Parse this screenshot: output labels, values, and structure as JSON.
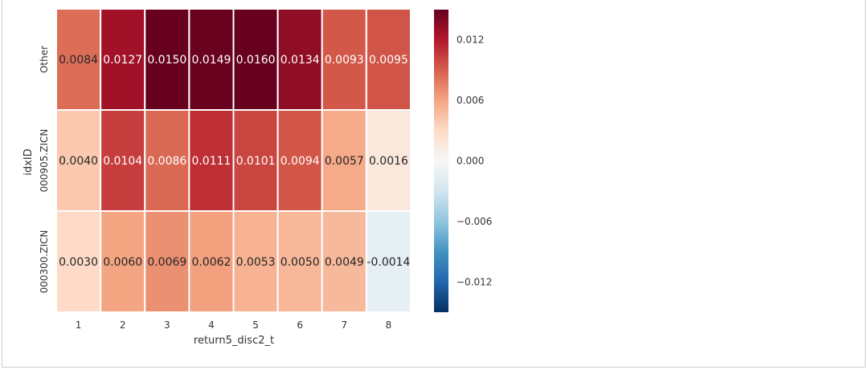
{
  "chart_data": {
    "type": "heatmap",
    "xlabel": "return5_disc2_t",
    "ylabel": "idxID",
    "x_categories": [
      "1",
      "2",
      "3",
      "4",
      "5",
      "6",
      "7",
      "8"
    ],
    "y_categories": [
      "Other",
      "000905.ZICN",
      "000300.ZICN"
    ],
    "values": [
      [
        0.0084,
        0.0127,
        0.015,
        0.0149,
        0.016,
        0.0134,
        0.0093,
        0.0095
      ],
      [
        0.004,
        0.0104,
        0.0086,
        0.0111,
        0.0101,
        0.0094,
        0.0057,
        0.0016
      ],
      [
        0.003,
        0.006,
        0.0069,
        0.0062,
        0.0053,
        0.005,
        0.0049,
        -0.0014
      ]
    ],
    "value_labels": [
      [
        "0.0084",
        "0.0127",
        "0.0150",
        "0.0149",
        "0.0160",
        "0.0134",
        "0.0093",
        "0.0095"
      ],
      [
        "0.0040",
        "0.0104",
        "0.0086",
        "0.0111",
        "0.0101",
        "0.0094",
        "0.0057",
        "0.0016"
      ],
      [
        "0.0030",
        "0.0060",
        "0.0069",
        "0.0062",
        "0.0053",
        "0.0050",
        "0.0049",
        "-0.0014"
      ]
    ],
    "colorbar": {
      "range": [
        -0.015,
        0.015
      ],
      "ticks": [
        0.012,
        0.006,
        0.0,
        -0.006,
        -0.012
      ],
      "tick_labels": [
        "0.012",
        "0.006",
        "0.000",
        "−0.006",
        "−0.012"
      ],
      "colormap": "RdBu_r"
    },
    "grid": false,
    "annotated": true
  }
}
